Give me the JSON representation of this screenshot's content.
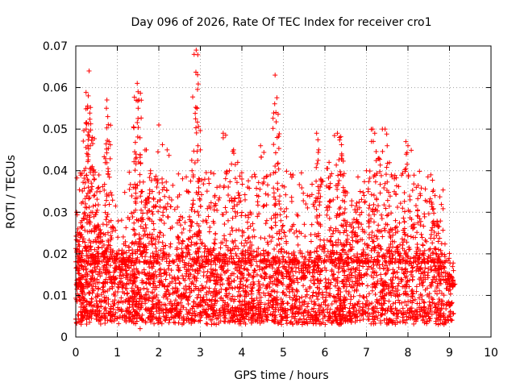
{
  "chart_data": {
    "type": "scatter",
    "title": "Day 096 of 2026, Rate Of TEC Index for receiver cro1",
    "xlabel": "GPS time / hours",
    "ylabel": "ROTI / TECUs",
    "xlim": [
      0,
      10
    ],
    "ylim": [
      0,
      0.07
    ],
    "xticks": [
      "0",
      "1",
      "2",
      "3",
      "4",
      "5",
      "6",
      "7",
      "8",
      "9",
      "10"
    ],
    "yticks": [
      "0",
      "0.01",
      "0.02",
      "0.03",
      "0.04",
      "0.05",
      "0.06",
      "0.07"
    ],
    "grid": true,
    "marker": "+",
    "color": "#ff0000",
    "series": [
      {
        "name": "ROTI",
        "sampling": "dense point cloud, approximately one sample every 30 s per satellite, x from 0 to 9.1 h",
        "baseline_band": [
          0.004,
          0.02
        ],
        "points": [
          [
            0.02,
            0.03
          ],
          [
            0.05,
            0.026
          ],
          [
            0.1,
            0.014
          ],
          [
            0.15,
            0.028
          ],
          [
            0.2,
            0.04
          ],
          [
            0.25,
            0.05
          ],
          [
            0.28,
            0.055
          ],
          [
            0.3,
            0.058
          ],
          [
            0.32,
            0.064
          ],
          [
            0.35,
            0.046
          ],
          [
            0.4,
            0.048
          ],
          [
            0.45,
            0.038
          ],
          [
            0.5,
            0.03
          ],
          [
            0.55,
            0.036
          ],
          [
            0.6,
            0.025
          ],
          [
            0.7,
            0.02
          ],
          [
            0.75,
            0.057
          ],
          [
            0.77,
            0.053
          ],
          [
            0.8,
            0.047
          ],
          [
            0.85,
            0.028
          ],
          [
            1.0,
            0.02
          ],
          [
            1.2,
            0.022
          ],
          [
            1.4,
            0.03
          ],
          [
            1.45,
            0.044
          ],
          [
            1.48,
            0.061
          ],
          [
            1.5,
            0.059
          ],
          [
            1.52,
            0.057
          ],
          [
            1.6,
            0.035
          ],
          [
            1.7,
            0.045
          ],
          [
            1.8,
            0.04
          ],
          [
            1.9,
            0.038
          ],
          [
            2.0,
            0.051
          ],
          [
            2.1,
            0.03
          ],
          [
            2.2,
            0.045
          ],
          [
            2.5,
            0.028
          ],
          [
            2.7,
            0.035
          ],
          [
            2.8,
            0.04
          ],
          [
            2.85,
            0.068
          ],
          [
            2.9,
            0.069
          ],
          [
            2.92,
            0.055
          ],
          [
            3.0,
            0.045
          ],
          [
            3.2,
            0.038
          ],
          [
            3.4,
            0.036
          ],
          [
            3.55,
            0.049
          ],
          [
            3.7,
            0.04
          ],
          [
            3.8,
            0.045
          ],
          [
            3.9,
            0.042
          ],
          [
            4.0,
            0.038
          ],
          [
            4.2,
            0.03
          ],
          [
            4.45,
            0.046
          ],
          [
            4.6,
            0.028
          ],
          [
            4.8,
            0.063
          ],
          [
            4.82,
            0.054
          ],
          [
            4.85,
            0.048
          ],
          [
            4.9,
            0.032
          ],
          [
            5.2,
            0.02
          ],
          [
            5.5,
            0.018
          ],
          [
            5.8,
            0.049
          ],
          [
            5.85,
            0.045
          ],
          [
            5.9,
            0.038
          ],
          [
            6.1,
            0.042
          ],
          [
            6.2,
            0.033
          ],
          [
            6.3,
            0.049
          ],
          [
            6.35,
            0.048
          ],
          [
            6.4,
            0.043
          ],
          [
            6.5,
            0.035
          ],
          [
            6.6,
            0.027
          ],
          [
            6.75,
            0.03
          ],
          [
            6.85,
            0.035
          ],
          [
            7.0,
            0.04
          ],
          [
            7.15,
            0.05
          ],
          [
            7.2,
            0.049
          ],
          [
            7.3,
            0.043
          ],
          [
            7.45,
            0.05
          ],
          [
            7.5,
            0.046
          ],
          [
            7.6,
            0.039
          ],
          [
            7.7,
            0.028
          ],
          [
            7.95,
            0.047
          ],
          [
            8.0,
            0.046
          ],
          [
            8.2,
            0.036
          ],
          [
            8.3,
            0.034
          ],
          [
            8.55,
            0.039
          ],
          [
            8.6,
            0.035
          ],
          [
            8.65,
            0.034
          ],
          [
            8.8,
            0.02
          ],
          [
            9.0,
            0.015
          ],
          [
            6.35,
            0.003
          ],
          [
            1.55,
            0.002
          ],
          [
            0.2,
            0.006
          ],
          [
            9.05,
            0.013
          ]
        ]
      }
    ]
  }
}
